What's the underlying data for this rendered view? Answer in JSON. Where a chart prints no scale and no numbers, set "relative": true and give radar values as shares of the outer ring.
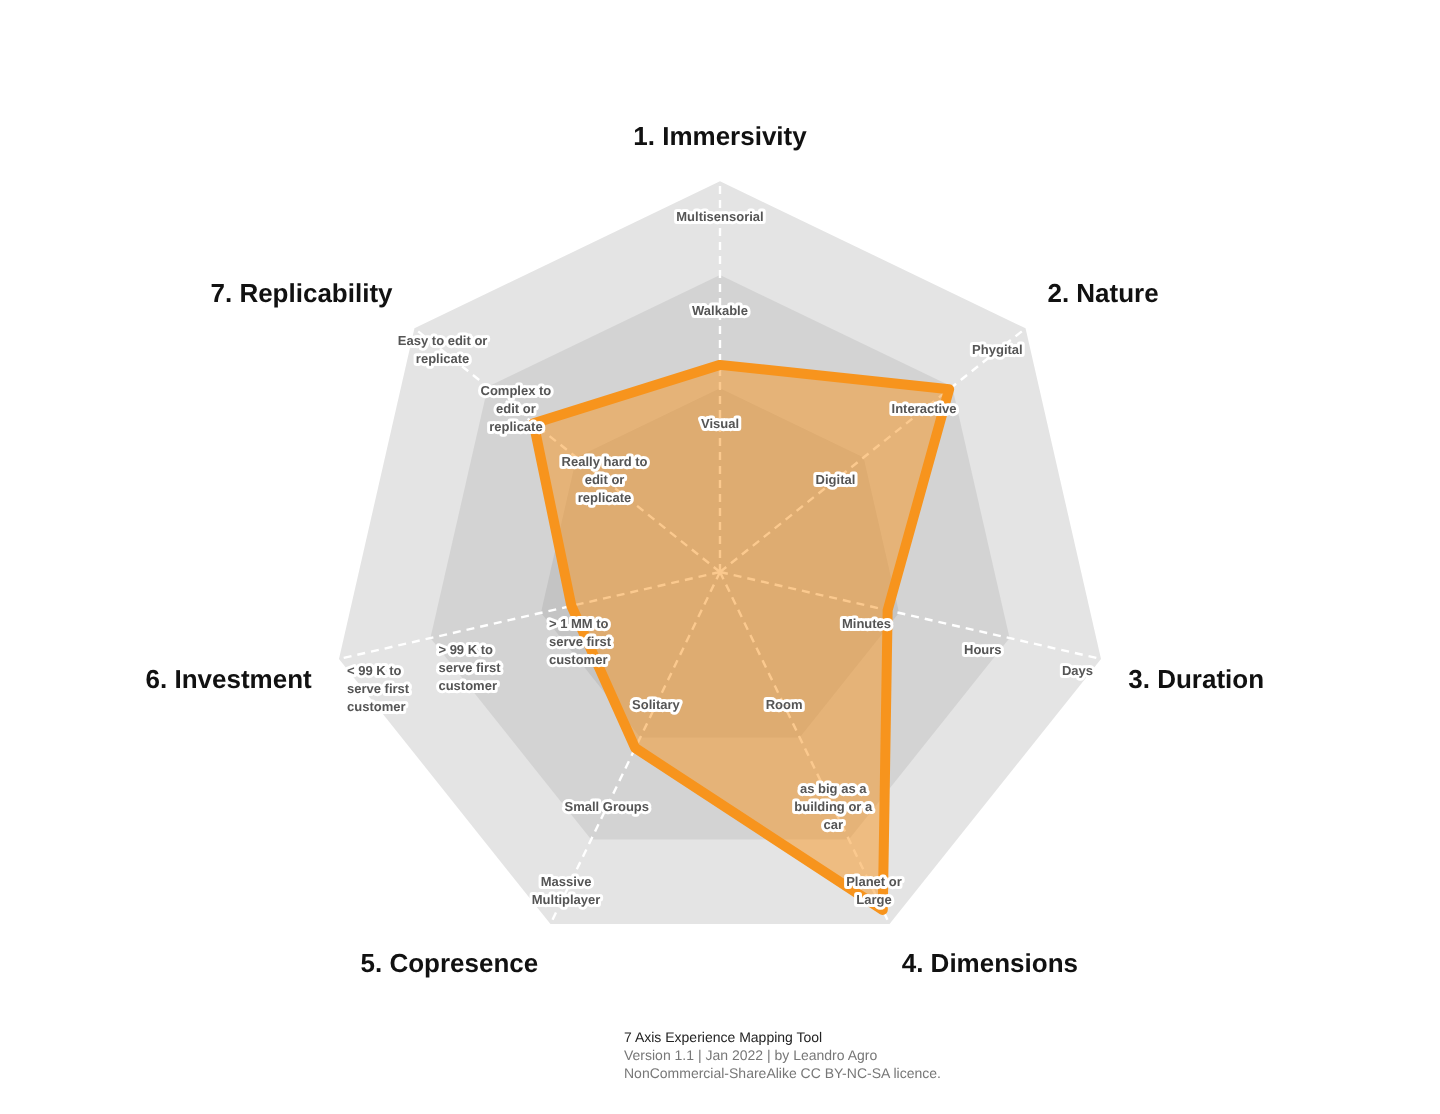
{
  "chart_data": {
    "type": "radar",
    "categories": [
      "1. Immersivity",
      "2. Nature",
      "3. Duration",
      "4. Dimensions",
      "5. Copresence",
      "6. Investment",
      "7. Replicability"
    ],
    "series": [
      {
        "color": "#f7941d",
        "values": [
          0.53,
          0.75,
          0.44,
          0.96,
          0.5,
          0.39,
          0.61
        ]
      }
    ],
    "relative": true,
    "legend": false,
    "annotations": [
      {
        "text": "Visual",
        "x": "1. Immersivity"
      },
      {
        "text": "Walkable",
        "x": "1. Immersivity"
      },
      {
        "text": "Multisensorial",
        "x": "1. Immersivity"
      },
      {
        "text": "Digital",
        "x": "2. Nature"
      },
      {
        "text": "Interactive",
        "x": "2. Nature"
      },
      {
        "text": "Phygital",
        "x": "2. Nature"
      },
      {
        "text": "Minutes",
        "x": "3. Duration"
      },
      {
        "text": "Hours",
        "x": "3. Duration"
      },
      {
        "text": "Days",
        "x": "3. Duration"
      },
      {
        "text": "Room",
        "x": "4. Dimensions"
      },
      {
        "text": "as big as a building or a car",
        "x": "4. Dimensions"
      },
      {
        "text": "Planet or Large",
        "x": "4. Dimensions"
      },
      {
        "text": "Solitary",
        "x": "5. Copresence"
      },
      {
        "text": "Small Groups",
        "x": "5. Copresence"
      },
      {
        "text": "Massive Multiplayer",
        "x": "5. Copresence"
      },
      {
        "text": "> 1 MM to serve first customer",
        "x": "6. Investment"
      },
      {
        "text": "> 99 K to serve first customer",
        "x": "6. Investment"
      },
      {
        "text": "< 99 K to serve first customer",
        "x": "6. Investment"
      },
      {
        "text": "Really hard to edit or replicate",
        "x": "7. Replicability"
      },
      {
        "text": "Complex to edit or replicate",
        "x": "7. Replicability"
      },
      {
        "text": "Easy to edit or replicate",
        "x": "7. Replicability"
      },
      "7 Axis Experience Mapping Tool",
      "Version 1.1 | Jan 2022 | by Leandro Agro",
      "NonCommercial-ShareAlike CC BY-NC-SA licence."
    ]
  }
}
